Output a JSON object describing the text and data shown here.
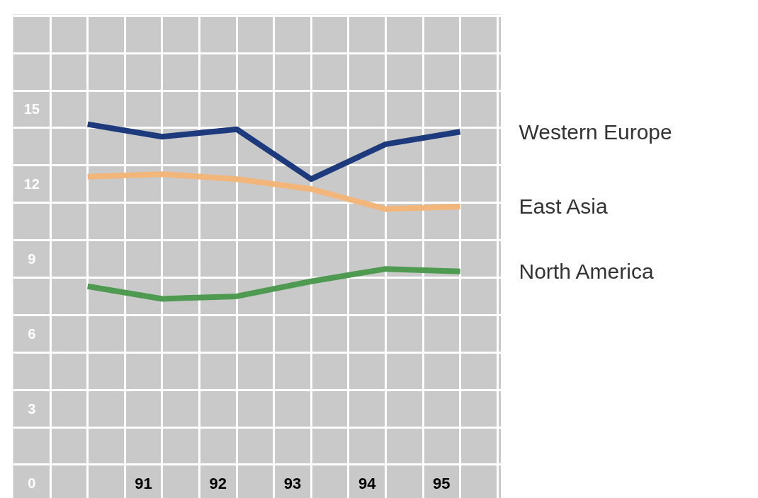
{
  "chart_data": {
    "type": "line",
    "x": [
      90.25,
      91.25,
      92.25,
      93.25,
      94.25,
      95.25
    ],
    "xlim": [
      89.25,
      95.8
    ],
    "xticks": [
      91,
      92,
      93,
      94,
      95
    ],
    "ylim": [
      -0.6,
      18.8
    ],
    "yticks": [
      0,
      3,
      6,
      9,
      12,
      15
    ],
    "grid": true,
    "legend": false,
    "series": [
      {
        "name": "Western Europe",
        "color": "#1d3b7c",
        "values": [
          14.4,
          13.9,
          14.2,
          12.2,
          13.6,
          14.1
        ]
      },
      {
        "name": "East Asia",
        "color": "#f2b57a",
        "values": [
          12.3,
          12.4,
          12.2,
          11.8,
          11.0,
          11.1
        ]
      },
      {
        "name": "North America",
        "color": "#4e9a50",
        "values": [
          7.9,
          7.4,
          7.5,
          8.1,
          8.6,
          8.5
        ]
      }
    ]
  }
}
